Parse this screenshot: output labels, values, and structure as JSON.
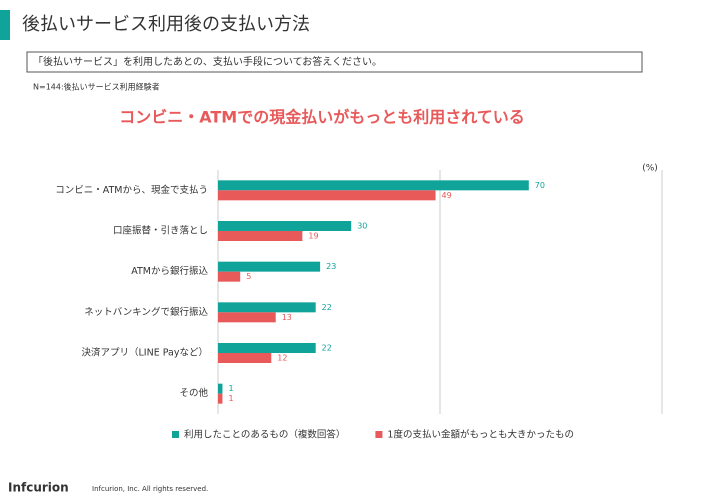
{
  "slide": {
    "title": "後払いサービス利用後の支払い方法",
    "question": "「後払いサービス」を利用したあとの、支払い手段についてお答えください。",
    "note": "N=144:後払いサービス利用経験者",
    "headline": "コンビニ・ATMでの現金払いがもっとも利用されている",
    "brand": "Infcurion",
    "copyright": "Infcurion, Inc.  All rights reserved."
  },
  "chart_data": {
    "type": "bar",
    "orientation": "horizontal",
    "unit": "(%)",
    "categories": [
      "コンビニ・ATMから、現金で支払う",
      "口座振替・引き落とし",
      "ATMから銀行振込",
      "ネットバンキングで銀行振込",
      "決済アプリ（LINE Payなど）",
      "その他"
    ],
    "series": [
      {
        "name": "利用したことのあるもの（複数回答）",
        "color": "#0fa39a",
        "values": [
          70,
          30,
          23,
          22,
          22,
          1
        ]
      },
      {
        "name": "1度の支払い金額がもっとも大きかったもの",
        "color": "#e8595a",
        "values": [
          49,
          19,
          5,
          13,
          12,
          1
        ]
      }
    ],
    "xlim": [
      0,
      100
    ],
    "xticks": [
      0,
      50,
      100
    ],
    "grid": true,
    "legend": "bottom"
  }
}
